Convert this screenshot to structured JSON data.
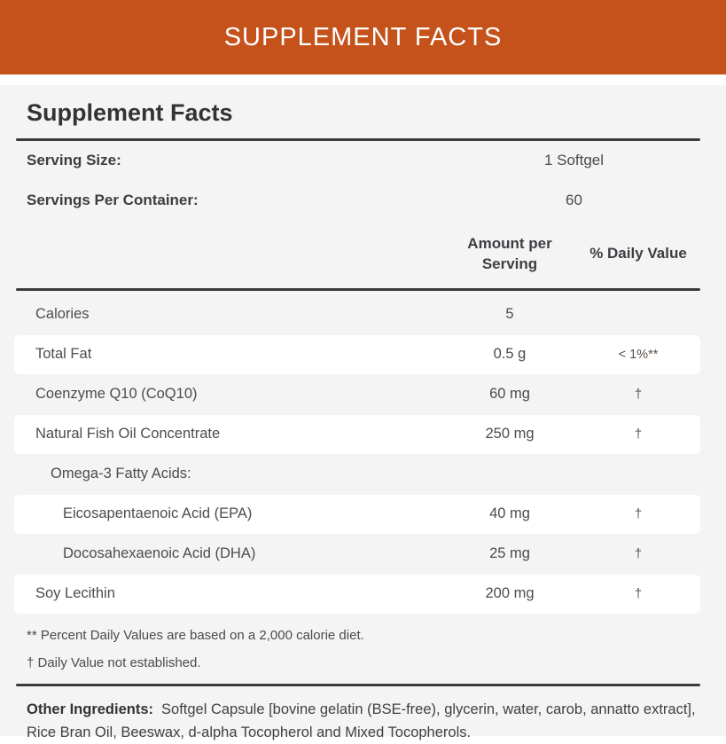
{
  "banner": {
    "title": "SUPPLEMENT FACTS"
  },
  "panel": {
    "title": "Supplement Facts",
    "serving_size_label": "Serving Size:",
    "serving_size_value": "1 Softgel",
    "servings_per_container_label": "Servings Per Container:",
    "servings_per_container_value": "60",
    "columns": {
      "amount": "Amount per Serving",
      "daily_value": "% Daily Value"
    },
    "rows": [
      {
        "name": "Calories",
        "amount": "5",
        "dv": ""
      },
      {
        "name": "Total Fat",
        "amount": "0.5 g",
        "dv": "< 1%**"
      },
      {
        "name": "Coenzyme Q10 (CoQ10)",
        "amount": "60 mg",
        "dv": "†"
      },
      {
        "name": "Natural Fish Oil Concentrate",
        "amount": "250 mg",
        "dv": "†"
      },
      {
        "name": "Omega-3 Fatty Acids:",
        "amount": "",
        "dv": ""
      },
      {
        "name": "Eicosapentaenoic Acid (EPA)",
        "amount": "40 mg",
        "dv": "†"
      },
      {
        "name": "Docosahexaenoic Acid (DHA)",
        "amount": "25 mg",
        "dv": "†"
      },
      {
        "name": "Soy Lecithin",
        "amount": "200 mg",
        "dv": "†"
      }
    ],
    "footnotes": [
      "** Percent Daily Values are based on a 2,000 calorie diet.",
      "† Daily Value not established."
    ],
    "other_ingredients_label": "Other Ingredients:",
    "other_ingredients_text": "Softgel Capsule [bovine gelatin (BSE-free), glycerin, water, carob, annatto extract], Rice Bran Oil, Beeswax, d-alpha Tocopherol and Mixed Tocopherols."
  },
  "colors": {
    "banner_background": "#c4521a",
    "panel_background": "#f4f4f4",
    "row_stripe": "#ffffff",
    "rule": "#3a3a3a",
    "heading_text": "#333333",
    "body_text": "#4a4b4f"
  }
}
